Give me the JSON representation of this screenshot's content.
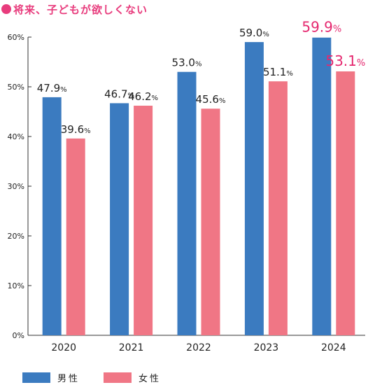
{
  "title": "将来、子どもが欲しくない",
  "colors": {
    "title": "#e83c7d",
    "male": "#3b7bc0",
    "female": "#f07685",
    "highlight": "#e5286f",
    "axis": "#333333",
    "grid": "#cccccc"
  },
  "chart_data": {
    "type": "bar",
    "title": "将来、子どもが欲しくない",
    "categories": [
      "2020",
      "2021",
      "2022",
      "2023",
      "2024"
    ],
    "series": [
      {
        "name": "男性",
        "values": [
          47.9,
          46.7,
          53.0,
          59.0,
          59.9
        ]
      },
      {
        "name": "女性",
        "values": [
          39.6,
          46.2,
          45.6,
          51.1,
          53.1
        ]
      }
    ],
    "ylim": [
      0,
      60
    ],
    "yticks": [
      "0%",
      "10%",
      "20%",
      "30%",
      "40%",
      "50%",
      "60%"
    ],
    "data_labels": [
      [
        "47.9",
        "46.7",
        "53.0",
        "59.0",
        "59.9"
      ],
      [
        "39.6",
        "46.2",
        "45.6",
        "51.1",
        "53.1"
      ]
    ],
    "label_unit": "%",
    "highlight_category": "2024",
    "legend": {
      "position": "bottom-left",
      "entries": [
        "男性",
        "女性"
      ]
    },
    "grid": false
  }
}
